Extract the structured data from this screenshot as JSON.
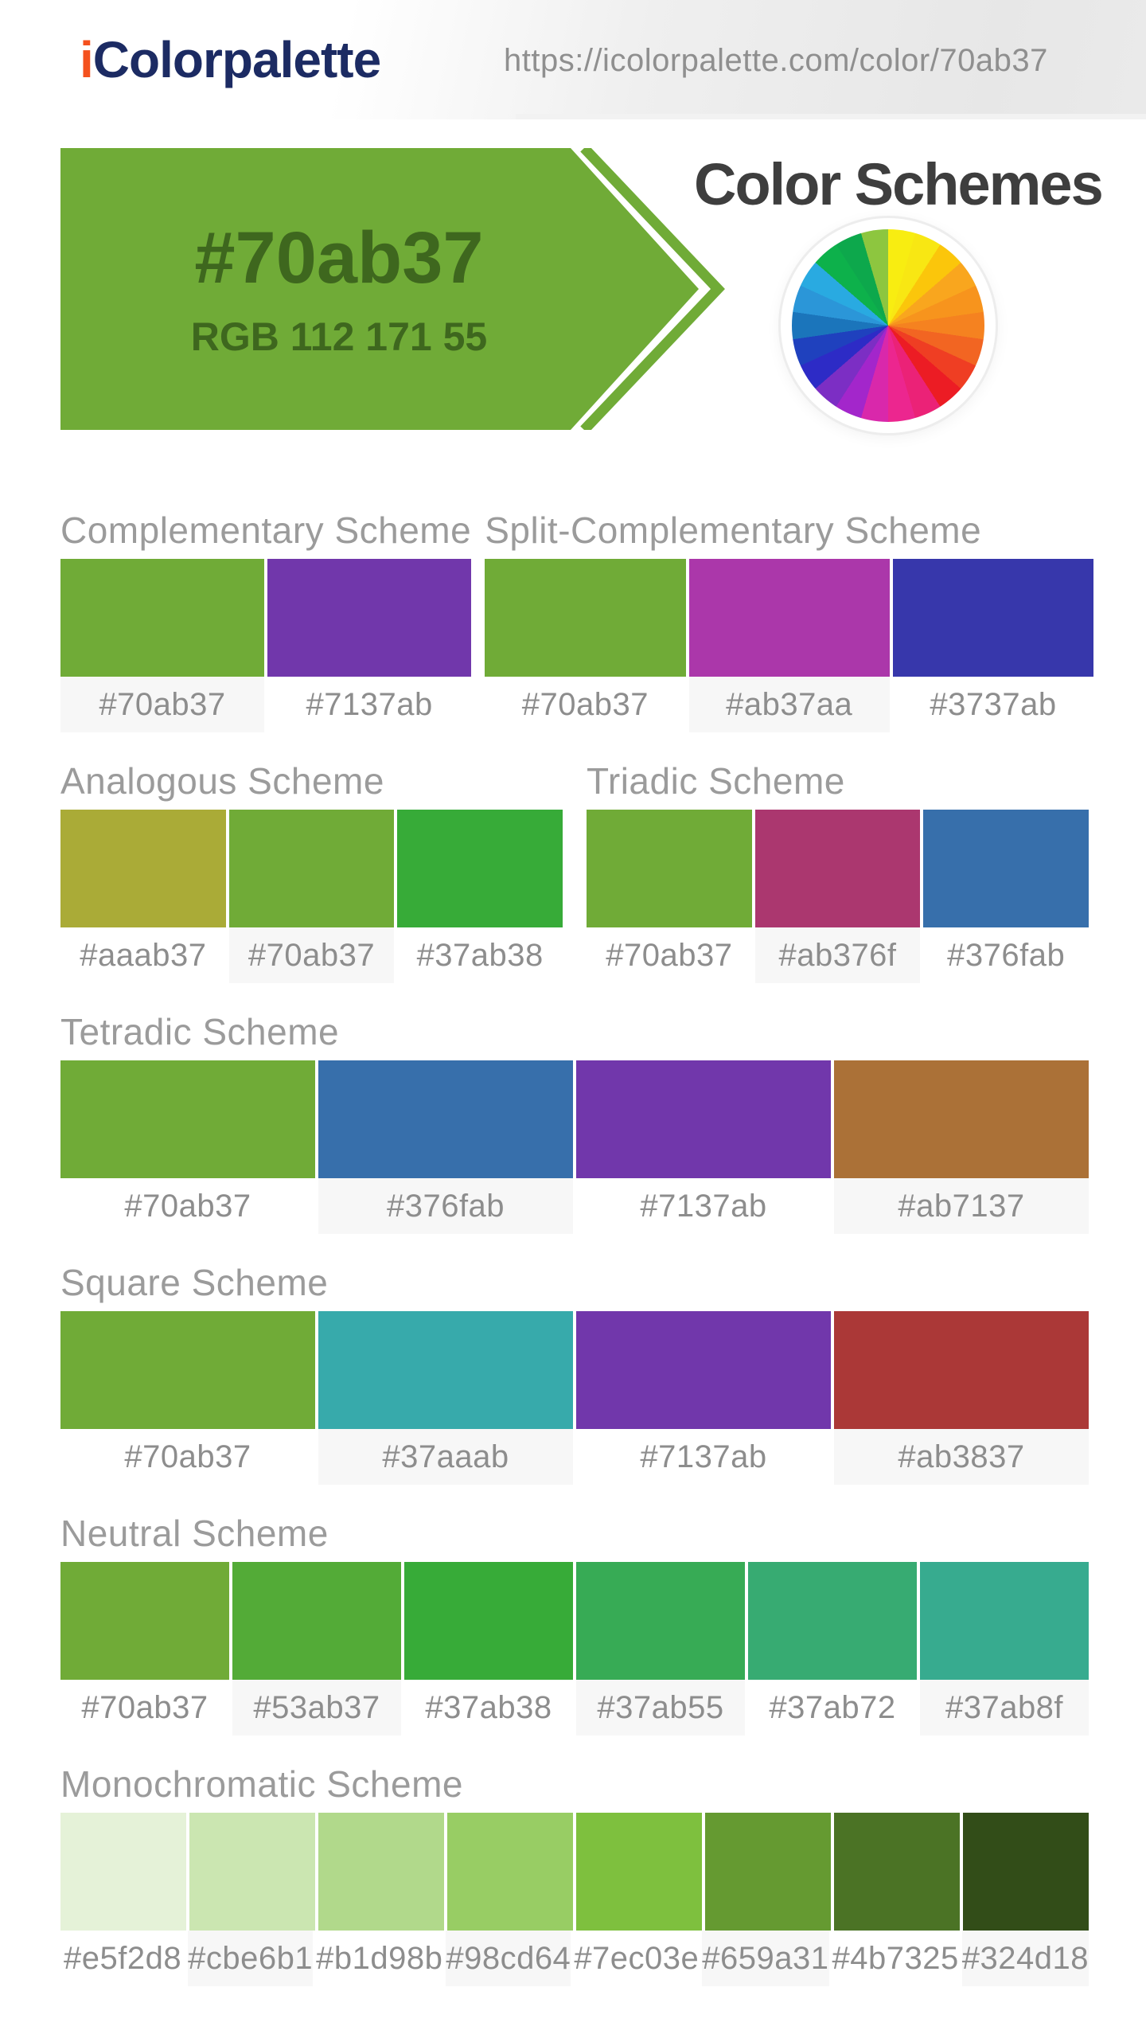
{
  "header": {
    "logo_accent": "i",
    "logo_text": "Colorpalette",
    "url": "https://icolorpalette.com/color/70ab37"
  },
  "banner": {
    "hex": "#70ab37",
    "rgb_label": "RGB 112 171 55",
    "background": "#70ab37",
    "text_color": "#3e671e"
  },
  "section_title": "Color Schemes",
  "wheel": {
    "colors": [
      "#f8ed11",
      "#f8e713",
      "#fbc60b",
      "#f9a61e",
      "#f7941d",
      "#f58220",
      "#f26522",
      "#ef3e23",
      "#ec1c24",
      "#eb2277",
      "#ec268f",
      "#d928ab",
      "#a326cb",
      "#7c2ec4",
      "#2d2bc6",
      "#1f41be",
      "#1b75bb",
      "#2b96d8",
      "#29aae1",
      "#0db14b",
      "#0da84c",
      "#8dc63f"
    ]
  },
  "scheme_rows": [
    [
      {
        "name": "Complementary Scheme",
        "colors": [
          {
            "hex": "#70ab37",
            "shaded": true
          },
          {
            "hex": "#7137ab",
            "shaded": false
          }
        ]
      },
      {
        "name": "Split-Complementary Scheme",
        "colors": [
          {
            "hex": "#70ab37",
            "shaded": false
          },
          {
            "hex": "#ab37aa",
            "shaded": true
          },
          {
            "hex": "#3737ab",
            "shaded": false
          }
        ]
      }
    ],
    [
      {
        "name": "Analogous Scheme",
        "colors": [
          {
            "hex": "#aaab37",
            "shaded": false
          },
          {
            "hex": "#70ab37",
            "shaded": true
          },
          {
            "hex": "#37ab38",
            "shaded": false
          }
        ]
      },
      {
        "name": "Triadic Scheme",
        "colors": [
          {
            "hex": "#70ab37",
            "shaded": false
          },
          {
            "hex": "#ab376f",
            "shaded": true
          },
          {
            "hex": "#376fab",
            "shaded": false
          }
        ]
      }
    ],
    [
      {
        "name": "Tetradic Scheme",
        "colors": [
          {
            "hex": "#70ab37",
            "shaded": false
          },
          {
            "hex": "#376fab",
            "shaded": true
          },
          {
            "hex": "#7137ab",
            "shaded": false
          },
          {
            "hex": "#ab7137",
            "shaded": true
          }
        ]
      }
    ],
    [
      {
        "name": "Square Scheme",
        "colors": [
          {
            "hex": "#70ab37",
            "shaded": false
          },
          {
            "hex": "#37aaab",
            "shaded": true
          },
          {
            "hex": "#7137ab",
            "shaded": false
          },
          {
            "hex": "#ab3837",
            "shaded": true
          }
        ]
      }
    ],
    [
      {
        "name": "Neutral Scheme",
        "colors": [
          {
            "hex": "#70ab37",
            "shaded": false
          },
          {
            "hex": "#53ab37",
            "shaded": true
          },
          {
            "hex": "#37ab38",
            "shaded": false
          },
          {
            "hex": "#37ab55",
            "shaded": true
          },
          {
            "hex": "#37ab72",
            "shaded": false
          },
          {
            "hex": "#37ab8f",
            "shaded": true
          }
        ]
      }
    ],
    [
      {
        "name": "Monochromatic Scheme",
        "colors": [
          {
            "hex": "#e5f2d8",
            "shaded": false
          },
          {
            "hex": "#cbe6b1",
            "shaded": true
          },
          {
            "hex": "#b1d98b",
            "shaded": false
          },
          {
            "hex": "#98cd64",
            "shaded": true
          },
          {
            "hex": "#7ec03e",
            "shaded": false
          },
          {
            "hex": "#659a31",
            "shaded": true
          },
          {
            "hex": "#4b7325",
            "shaded": false
          },
          {
            "hex": "#324d18",
            "shaded": true
          }
        ]
      }
    ]
  ]
}
